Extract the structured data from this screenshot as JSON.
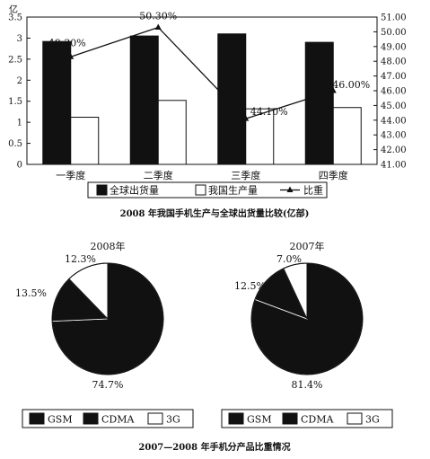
{
  "chart_data": [
    {
      "type": "bar",
      "title": "2008 年我国手机生产与全球出货量比较(亿部)",
      "ylabel_left": "亿",
      "categories": [
        "一季度",
        "二季度",
        "三季度",
        "四季度"
      ],
      "ylim_left": [
        0,
        3.5
      ],
      "ylim_right": [
        41.0,
        51.0
      ],
      "yticks_left": [
        "0",
        "0.5",
        "1",
        "1.5",
        "2",
        "2.5",
        "3",
        "3.5"
      ],
      "yticks_right": [
        "41.00",
        "42.00",
        "43.00",
        "44.00",
        "45.00",
        "46.00",
        "47.00",
        "48.00",
        "49.00",
        "50.00",
        "51.00"
      ],
      "series": [
        {
          "name": "全球出货量",
          "kind": "bar",
          "color": "#111111",
          "values": [
            2.92,
            3.05,
            3.1,
            2.9
          ]
        },
        {
          "name": "我国生产量",
          "kind": "bar",
          "color": "#ffffff",
          "values": [
            1.12,
            1.52,
            1.32,
            1.35
          ]
        },
        {
          "name": "比重",
          "kind": "line",
          "color": "#111111",
          "values": [
            48.3,
            50.3,
            44.1,
            46.0
          ],
          "labels": [
            "48.30%",
            "50.30%",
            "44.10%",
            "46.00%"
          ]
        }
      ],
      "legend": [
        "全球出货量",
        "我国生产量",
        "比重"
      ],
      "legend_position": "bottom"
    },
    {
      "type": "pie",
      "title": "2008年",
      "slices": [
        {
          "name": "GSM",
          "value": 74.7,
          "label": "74.7%",
          "color": "#111111"
        },
        {
          "name": "CDMA",
          "value": 13.5,
          "label": "13.5%",
          "color": "#111111"
        },
        {
          "name": "3G",
          "value": 12.3,
          "label": "12.3%",
          "color": "#ffffff"
        }
      ],
      "legend": [
        "GSM",
        "CDMA",
        "3G"
      ]
    },
    {
      "type": "pie",
      "title": "2007年",
      "slices": [
        {
          "name": "GSM",
          "value": 81.4,
          "label": "81.4%",
          "color": "#111111"
        },
        {
          "name": "CDMA",
          "value": 12.5,
          "label": "12.5%",
          "color": "#111111"
        },
        {
          "name": "3G",
          "value": 7.0,
          "label": "7.0%",
          "color": "#ffffff"
        }
      ],
      "legend": [
        "GSM",
        "CDMA",
        "3G"
      ]
    }
  ],
  "caption": "2007—2008 年手机分产品比重情况"
}
